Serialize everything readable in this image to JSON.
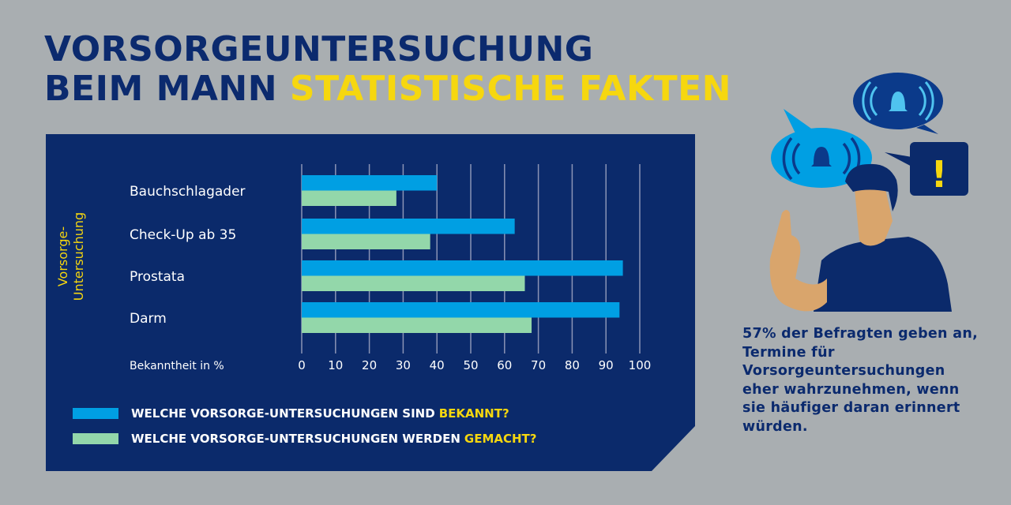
{
  "title": {
    "line1": "VORSORGEUNTERSUCHUNG",
    "line2_dark": "BEIM MANN",
    "line2_highlight": "STATISTISCHE FAKTEN"
  },
  "colors": {
    "background": "#a9aeb1",
    "navy": "#0b2a6b",
    "known": "#009fe3",
    "done": "#93d7aa",
    "accent": "#f6d70f"
  },
  "chart_data": {
    "type": "bar",
    "orientation": "horizontal",
    "categories": [
      "Bauchschlagader",
      "Check-Up ab 35",
      "Prostata",
      "Darm"
    ],
    "series": [
      {
        "name": "WELCHE VORSORGE-UNTERSUCHUNGEN SIND BEKANNT?",
        "values": [
          40,
          63,
          95,
          94
        ],
        "color": "#009fe3"
      },
      {
        "name": "WELCHE VORSORGE-UNTERSUCHUNGEN WERDEN GEMACHT?",
        "values": [
          28,
          38,
          66,
          68
        ],
        "color": "#93d7aa"
      }
    ],
    "xlabel": "Bekanntheit in %",
    "ylabel": "Vorsorge-\nUntersuchung",
    "xlim": [
      0,
      100
    ],
    "xticks": [
      "0",
      "10",
      "20",
      "30",
      "40",
      "50",
      "60",
      "70",
      "80",
      "90",
      "100"
    ],
    "grid": "vertical",
    "legend_placement": "bottom"
  },
  "legend": [
    {
      "prefix": "WELCHE VORSORGE-UNTERSUCHUNGEN SIND",
      "highlight": "BEKANNT?"
    },
    {
      "prefix": "WELCHE VORSORGE-UNTERSUCHUNGEN WERDEN",
      "highlight": "GEMACHT?"
    }
  ],
  "ylabel_lines": [
    "Vorsorge-",
    "Untersuchung"
  ],
  "illustration": {
    "icons": [
      "bell-icon",
      "bell-icon",
      "exclamation-icon"
    ],
    "exclamation": "!"
  },
  "statement": "57% der Befragten geben an, Termine für Vorsorgeuntersuchungen eher wahrzunehmen, wenn sie häufiger daran erinnert würden."
}
